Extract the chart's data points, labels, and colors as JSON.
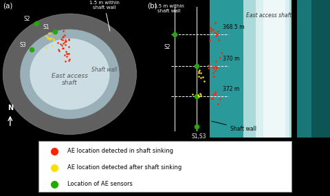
{
  "fig_width": 4.8,
  "fig_height": 2.85,
  "dpi": 100,
  "panel_a_label": "(a)",
  "panel_b_label": "(b)",
  "shaft_wall_label_a": "Shaft wall",
  "east_access_shaft_label_a": "East access\nshaft",
  "within_shaft_wall_label_a": "1.5 m within\nshaft wall",
  "within_shaft_wall_label_b": "1.5 m within\nshaft wall",
  "east_access_shaft_label_b": "East access shaft",
  "north_label": "N",
  "depth_labels": [
    "368.5 m",
    "370 m",
    "372 m"
  ],
  "shaft_wall_label_b": "Shaft wall",
  "red_color": "#ff2200",
  "yellow_color": "#ffdd00",
  "green_color": "#22aa00",
  "legend_red_label": "AE location detected in shaft sinking",
  "legend_yellow_label": "AE location detected after shaft sinking",
  "legend_green_label": "Location of AE sensors"
}
